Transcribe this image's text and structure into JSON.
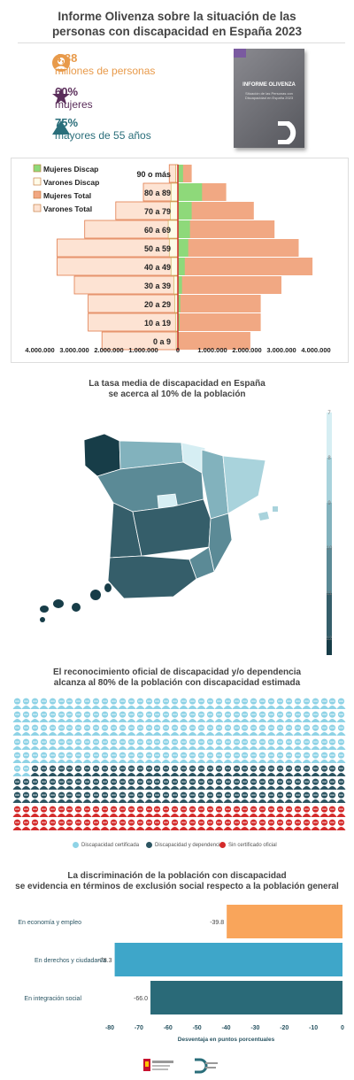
{
  "title_line1": "Informe Olivenza sobre la situación de las",
  "title_line2": "personas con discapacidad en España 2023",
  "stats": [
    {
      "value": "4,38",
      "label": "millones de personas",
      "color": "#e89a4a",
      "icon": "person-icon"
    },
    {
      "value": "60%",
      "label": "mujeres",
      "color": "#5a2d5a",
      "icon": "star-icon"
    },
    {
      "value": "75%",
      "label": "mayores de 55 años",
      "color": "#2a6e7a",
      "icon": "triangle-icon"
    }
  ],
  "book": {
    "title": "INFORME OLIVENZA",
    "subtitle": "Situación de las Personas con Discapacidad en España 2023"
  },
  "chart_data": [
    {
      "type": "bar",
      "subtype": "population-pyramid",
      "categories": [
        "0 a 9",
        "10 a 19",
        "20 a 29",
        "30 a 39",
        "40 a 49",
        "50 a 59",
        "60 a 69",
        "70 a 79",
        "80 a 89",
        "90 o más"
      ],
      "series": [
        {
          "name": "Mujeres Discap",
          "color": "#8ed97a",
          "values": [
            30000,
            50000,
            70000,
            120000,
            200000,
            300000,
            350000,
            400000,
            700000,
            150000
          ]
        },
        {
          "name": "Varones Discap",
          "color": "#fffbe8",
          "values": [
            50000,
            70000,
            90000,
            120000,
            200000,
            250000,
            280000,
            220000,
            200000,
            60000
          ]
        },
        {
          "name": "Mujeres Total",
          "color": "#f1a883",
          "values": [
            2100000,
            2400000,
            2400000,
            3000000,
            3900000,
            3500000,
            2800000,
            2200000,
            1400000,
            400000
          ]
        },
        {
          "name": "Varones Total",
          "color": "#fde3d3",
          "values": [
            2200000,
            2600000,
            2600000,
            3000000,
            3500000,
            3500000,
            2700000,
            1800000,
            1000000,
            250000
          ]
        }
      ],
      "xticks": [
        "4.000.000",
        "3.000.000",
        "2.000.000",
        "1.000.000",
        "0",
        "1.000.000",
        "2.000.000",
        "3.000.000",
        "4.000.000"
      ],
      "xlim": [
        -4000000,
        4000000
      ],
      "legend_position": "top-left"
    },
    {
      "type": "heatmap",
      "subtype": "choropleth",
      "title": "La tasa media de discapacidad en España se acerca al 10% de la población",
      "scale_ticks": [
        "7",
        "8",
        "9",
        "10",
        "11",
        "12"
      ],
      "scale_colors": [
        "#d6eef3",
        "#a9d3dc",
        "#82b2bd",
        "#5b8a96",
        "#355e6a",
        "#173d48"
      ]
    },
    {
      "type": "scatter",
      "subtype": "waffle",
      "title": "El reconocimiento oficial de discapacidad y/o dependencia alcanza al 80% de la población con discapacidad estimada",
      "categories": [
        "Discapacidad certificada",
        "Discapacidad y dependencia",
        "Sin certificado oficial"
      ],
      "colors": [
        "#8fd3e6",
        "#2c5562",
        "#d42b2b"
      ],
      "counts": [
        192,
        112,
        76
      ]
    },
    {
      "type": "bar",
      "orientation": "horizontal",
      "title": "La discriminación de la población con discapacidad se evidencia en términos de exclusión social respecto a la población general",
      "categories": [
        "En economía y empleo",
        "En derechos y ciudadanía",
        "En integración social"
      ],
      "values": [
        -39.8,
        -78.3,
        -66.0
      ],
      "value_labels": [
        "-39.8",
        "-78.3",
        "-66.0"
      ],
      "colors": [
        "#f9a55b",
        "#3ea6c9",
        "#2a6a78"
      ],
      "xlabel": "Desventaja en puntos porcentuales",
      "xlim": [
        -80,
        0
      ],
      "xticks": [
        "-80",
        "-70",
        "-60",
        "-50",
        "-40",
        "-30",
        "-20",
        "-10",
        "0"
      ]
    }
  ],
  "section_titles": {
    "map_l1": "La tasa media de discapacidad en España",
    "map_l2": "se acerca al 10% de la población",
    "waffle_l1": "El reconocimiento oficial de discapacidad y/o dependencia",
    "waffle_l2": "alcanza al 80% de la población con discapacidad estimada",
    "bars_l1": "La discriminación de la población con discapacidad",
    "bars_l2": "se evidencia en términos de exclusión social respecto a la población general"
  }
}
